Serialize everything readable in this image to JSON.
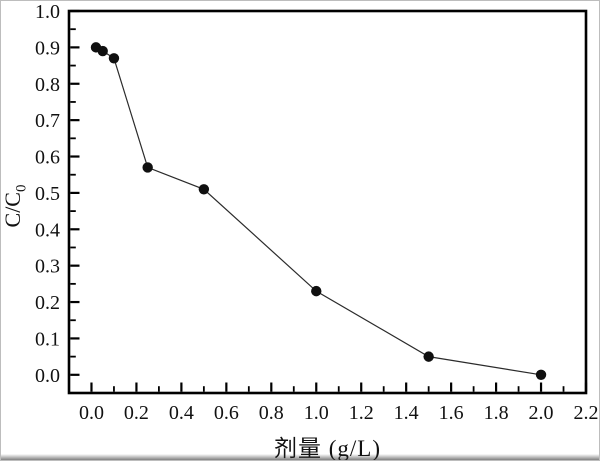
{
  "figure": {
    "background": "#ffffff",
    "border_color": "#bdbdbd",
    "frame_color": "#000000"
  },
  "chart_data": {
    "type": "line",
    "title": "",
    "xlabel": "剂量 (g/L)",
    "ylabel": "C/C0",
    "ylabel_main": "C/C",
    "ylabel_sub": "0",
    "x": [
      0.02,
      0.05,
      0.1,
      0.25,
      0.5,
      1.0,
      1.5,
      2.0
    ],
    "y": [
      0.9,
      0.89,
      0.87,
      0.57,
      0.51,
      0.23,
      0.05,
      0.0
    ],
    "xlim": [
      -0.1,
      2.2
    ],
    "ylim": [
      -0.05,
      1.0
    ],
    "x_major_ticks": [
      0.0,
      0.2,
      0.4,
      0.6,
      0.8,
      1.0,
      1.2,
      1.4,
      1.6,
      1.8,
      2.0,
      2.2
    ],
    "x_tick_labels": [
      "0.0",
      "0.2",
      "0.4",
      "0.6",
      "0.8",
      "1.0",
      "1.2",
      "1.4",
      "1.6",
      "1.8",
      "2.0",
      "2.2"
    ],
    "x_minor_step": 0.1,
    "y_major_ticks": [
      0.0,
      0.1,
      0.2,
      0.3,
      0.4,
      0.5,
      0.6,
      0.7,
      0.8,
      0.9,
      1.0
    ],
    "y_tick_labels": [
      "0.0",
      "0.1",
      "0.2",
      "0.3",
      "0.4",
      "0.5",
      "0.6",
      "0.7",
      "0.8",
      "0.9",
      "1.0"
    ],
    "y_minor_step": 0.05,
    "grid": false,
    "legend": "none",
    "tick_direction": "in",
    "marker": "circle",
    "marker_color": "#101010",
    "line_color": "#2b2b2b"
  }
}
